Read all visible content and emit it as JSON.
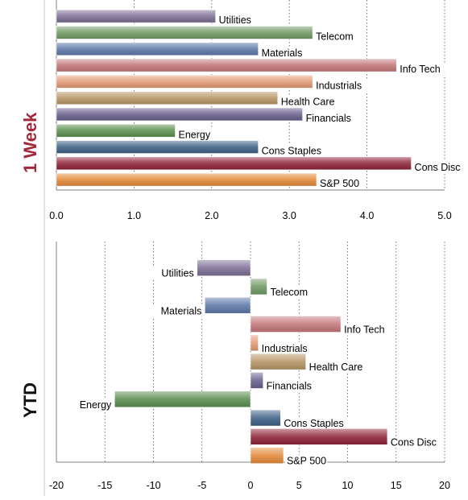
{
  "panels": [
    {
      "label": "1 Week",
      "label_color": "#a3283a"
    },
    {
      "label": "YTD",
      "label_color": "#111111"
    }
  ],
  "chart_data": [
    {
      "type": "bar",
      "orientation": "horizontal",
      "title": "",
      "panel_label": "1 Week",
      "categories": [
        "Utilities",
        "Telecom",
        "Materials",
        "Info Tech",
        "Industrials",
        "Health Care",
        "Financials",
        "Energy",
        "Cons Staples",
        "Cons Disc",
        "S&P 500"
      ],
      "values": [
        2.05,
        3.3,
        2.6,
        4.38,
        3.3,
        2.85,
        3.17,
        1.53,
        2.6,
        4.57,
        3.35
      ],
      "colors": [
        "#7d6f94",
        "#6f9a63",
        "#5d79a8",
        "#c57779",
        "#e39b74",
        "#b79566",
        "#6a608c",
        "#5b8e4f",
        "#3e6186",
        "#8e2338",
        "#e58a3b"
      ],
      "xlim": [
        0,
        5
      ],
      "xticks": [
        "0.0",
        "1.0",
        "2.0",
        "3.0",
        "4.0",
        "5.0"
      ],
      "grid": true
    },
    {
      "type": "bar",
      "orientation": "horizontal",
      "title": "",
      "panel_label": "YTD",
      "categories": [
        "Utilities",
        "Telecom",
        "Materials",
        "Info Tech",
        "Industrials",
        "Health Care",
        "Financials",
        "Energy",
        "Cons Staples",
        "Cons Disc",
        "S&P 500"
      ],
      "values": [
        -5.5,
        1.7,
        -4.7,
        9.3,
        0.8,
        5.7,
        1.3,
        -14,
        3.1,
        14.1,
        3.4
      ],
      "colors": [
        "#7d6f94",
        "#6f9a63",
        "#5d79a8",
        "#c57779",
        "#e39b74",
        "#b79566",
        "#6a608c",
        "#5b8e4f",
        "#3e6186",
        "#8e2338",
        "#e58a3b"
      ],
      "xlim": [
        -20,
        20
      ],
      "xticks": [
        "-20",
        "-15",
        "-10",
        "-5",
        "0",
        "5",
        "10",
        "15",
        "20"
      ],
      "grid": true
    }
  ]
}
